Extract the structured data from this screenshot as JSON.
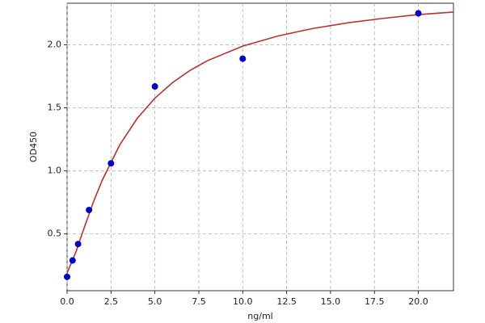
{
  "chart_data": {
    "type": "scatter",
    "x_label": "ng/ml",
    "y_label": "OD450",
    "points": {
      "color": "#0000cc",
      "x": [
        0,
        0.3125,
        0.625,
        1.25,
        2.5,
        5,
        10,
        20
      ],
      "values": [
        0.16,
        0.29,
        0.42,
        0.69,
        1.06,
        1.67,
        1.89,
        2.25
      ]
    },
    "curve": {
      "color": "#c0302a",
      "x": [
        0,
        0.5,
        1,
        1.5,
        2,
        3,
        4,
        5,
        6,
        7,
        8,
        10,
        12,
        14,
        16,
        18,
        20,
        22
      ],
      "values": [
        0.19,
        0.357,
        0.56,
        0.754,
        0.926,
        1.207,
        1.418,
        1.577,
        1.7,
        1.797,
        1.875,
        1.99,
        2.07,
        2.13,
        2.175,
        2.21,
        2.24,
        2.26
      ]
    },
    "xlim": [
      0,
      22
    ],
    "ylim": [
      0.05,
      2.33
    ],
    "xticks": [
      {
        "value": 0,
        "label": "0.0"
      },
      {
        "value": 2.5,
        "label": "2.5"
      },
      {
        "value": 5,
        "label": "5.0"
      },
      {
        "value": 7.5,
        "label": "7.5"
      },
      {
        "value": 10,
        "label": "10.0"
      },
      {
        "value": 12.5,
        "label": "12.5"
      },
      {
        "value": 15,
        "label": "15.0"
      },
      {
        "value": 17.5,
        "label": "17.5"
      },
      {
        "value": 20,
        "label": "20.0"
      }
    ],
    "yticks": [
      {
        "value": 0.5,
        "label": "0.5"
      },
      {
        "value": 1,
        "label": "1.0"
      },
      {
        "value": 1.5,
        "label": "1.5"
      },
      {
        "value": 2,
        "label": "2.0"
      }
    ],
    "grid": true
  }
}
